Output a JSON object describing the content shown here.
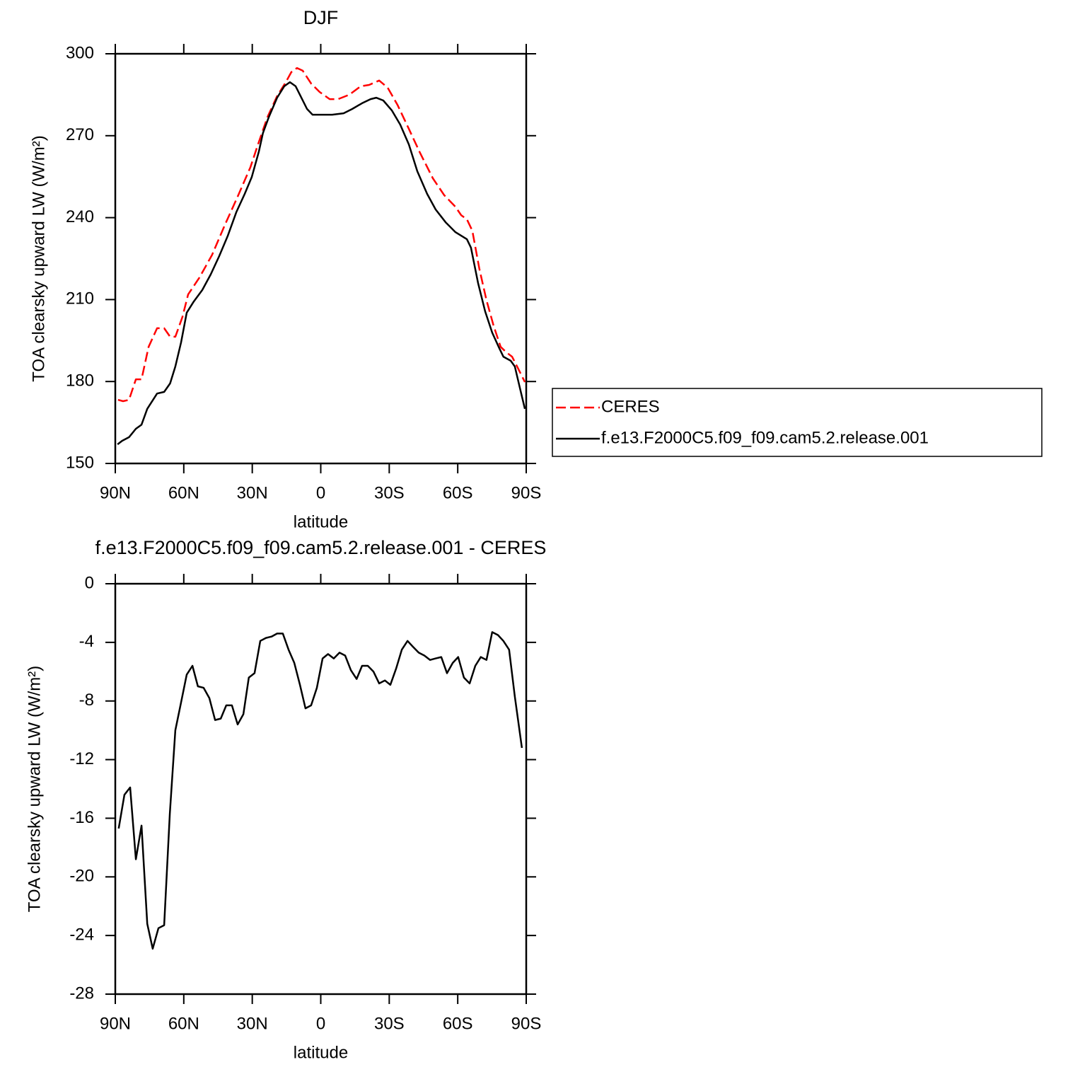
{
  "chart_data": [
    {
      "type": "line",
      "title": "DJF",
      "xlabel": "latitude",
      "ylabel": "TOA clearsky upward LW (W/m²)",
      "xlim": [
        90,
        -90
      ],
      "xticks": [
        {
          "value": 90,
          "label": "90N"
        },
        {
          "value": 60,
          "label": "60N"
        },
        {
          "value": 30,
          "label": "30N"
        },
        0,
        {
          "value": -30,
          "label": "30S"
        },
        {
          "value": -60,
          "label": "60S"
        },
        {
          "value": -90,
          "label": "90S"
        }
      ],
      "ylim": [
        150,
        300
      ],
      "yticks": [
        150,
        180,
        210,
        240,
        270,
        300
      ],
      "legend": "right",
      "series": [
        {
          "name": "CERES",
          "color": "#ff0000",
          "line_style": "dashed",
          "x": [
            88.8,
            86.6,
            84,
            81,
            78.5,
            75.4,
            71.7,
            68.6,
            66,
            63.7,
            60.6,
            58.1,
            53.1,
            47.6,
            42,
            36.4,
            30.8,
            27.7,
            23.4,
            19.1,
            15.3,
            12.9,
            10.4,
            7.9,
            4.2,
            0.5,
            -3.9,
            -7.6,
            -12.5,
            -17.5,
            -21.2,
            -25.6,
            -29.3,
            -33.6,
            -38.6,
            -43.5,
            -49.1,
            -54.1,
            -59,
            -61.5,
            -64,
            -66.4,
            -69.5,
            -72.6,
            -75.7,
            -78.8,
            -81.3,
            -83.8,
            -86.3,
            -89.4
          ],
          "values": [
            173.3,
            172.8,
            173.3,
            180.8,
            180.8,
            192.7,
            199.5,
            199.5,
            196.4,
            196.4,
            203.6,
            211.9,
            218.1,
            226.4,
            237.3,
            247.7,
            258.5,
            266.3,
            276.7,
            284.5,
            289.6,
            293.3,
            294.8,
            293.8,
            289.1,
            286,
            283.4,
            283.4,
            285,
            288.1,
            288.6,
            290.2,
            287.6,
            281.3,
            272.5,
            263.7,
            254.4,
            248.2,
            244,
            240.9,
            239.4,
            235.2,
            221.2,
            209.8,
            200.5,
            192.7,
            190.7,
            189.1,
            185,
            179.8
          ]
        },
        {
          "name": "f.e13.F2000C5.f09_f09.cam5.2.release.001",
          "color": "#000000",
          "line_style": "solid",
          "x": [
            89,
            87,
            84,
            81,
            78.5,
            76,
            71.7,
            68.6,
            66,
            63.7,
            61.2,
            58.7,
            55.6,
            51.9,
            48.2,
            44.5,
            40.7,
            37,
            33.3,
            30.2,
            27.1,
            25.3,
            22.8,
            19.1,
            16,
            13.5,
            11,
            8.5,
            6,
            3.6,
            0,
            -5,
            -10,
            -13.8,
            -18.1,
            -21.8,
            -24.3,
            -27.4,
            -31.1,
            -34.8,
            -38.6,
            -42.3,
            -46.6,
            -50.3,
            -54.7,
            -59,
            -64,
            -65.8,
            -68.9,
            -72,
            -75.1,
            -78.2,
            -80,
            -83.2,
            -85,
            -87.5,
            -89.4
          ],
          "values": [
            157,
            158.3,
            159.6,
            162.7,
            164.2,
            170,
            175.6,
            176.2,
            179.3,
            185.5,
            194.3,
            205.2,
            209.3,
            213.5,
            219.2,
            225.9,
            233.4,
            242,
            248.7,
            254.9,
            264.2,
            271,
            276.7,
            283.9,
            288.1,
            289.6,
            288.1,
            283.9,
            279.8,
            277.7,
            277.7,
            277.7,
            278.2,
            279.8,
            281.9,
            283.4,
            283.9,
            282.9,
            279.3,
            274.1,
            266.8,
            257,
            248.7,
            243,
            238.3,
            234.7,
            232.1,
            229,
            216.1,
            205.7,
            197.9,
            192.2,
            189.1,
            187.6,
            185.5,
            176.7,
            170
          ]
        }
      ]
    },
    {
      "type": "line",
      "title": "f.e13.F2000C5.f09_f09.cam5.2.release.001  -  CERES",
      "xlabel": "latitude",
      "ylabel": "TOA clearsky upward LW (W/m²)",
      "xlim": [
        90,
        -90
      ],
      "xticks": [
        {
          "value": 90,
          "label": "90N"
        },
        {
          "value": 60,
          "label": "60N"
        },
        {
          "value": 30,
          "label": "30N"
        },
        0,
        {
          "value": -30,
          "label": "30S"
        },
        {
          "value": -60,
          "label": "60S"
        },
        {
          "value": -90,
          "label": "90S"
        }
      ],
      "ylim": [
        -28,
        0
      ],
      "yticks": [
        -28,
        -24,
        -20,
        -16,
        -12,
        -8,
        -4,
        0
      ],
      "color": "#000000",
      "x": [
        88.5,
        86,
        83.5,
        81,
        78.5,
        76,
        73.6,
        71.1,
        68.6,
        66.1,
        63.7,
        61.2,
        58.7,
        56.2,
        53.8,
        51.3,
        48.8,
        46.3,
        43.8,
        41.4,
        38.9,
        36.4,
        33.9,
        31.5,
        29,
        26.5,
        24,
        21.5,
        19.1,
        16.6,
        14.1,
        11.6,
        9.1,
        6.7,
        4.2,
        1.7,
        -0.8,
        -3.2,
        -5.7,
        -8.2,
        -10.7,
        -13.2,
        -15.7,
        -18.1,
        -20.6,
        -23.1,
        -25.6,
        -28.1,
        -30.5,
        -33,
        -35.5,
        -38,
        -40.4,
        -42.9,
        -45.4,
        -47.9,
        -50.3,
        -52.8,
        -55.3,
        -57.8,
        -60.2,
        -62.7,
        -65.2,
        -67.7,
        -70.1,
        -72.6,
        -75.1,
        -77.6,
        -80,
        -82.5,
        -85,
        -88.1
      ],
      "values": [
        -16.7,
        -14.4,
        -13.9,
        -18.8,
        -16.5,
        -23.2,
        -24.9,
        -23.5,
        -23.3,
        -15.7,
        -10,
        -8.1,
        -6.2,
        -5.6,
        -7,
        -7.1,
        -7.8,
        -9.3,
        -9.2,
        -8.3,
        -8.3,
        -9.6,
        -8.9,
        -6.4,
        -6.1,
        -3.9,
        -3.7,
        -3.6,
        -3.4,
        -3.4,
        -4.5,
        -5.4,
        -6.9,
        -8.5,
        -8.3,
        -7.1,
        -5.1,
        -4.8,
        -5.1,
        -4.7,
        -4.9,
        -5.9,
        -6.5,
        -5.6,
        -5.6,
        -6,
        -6.8,
        -6.6,
        -6.9,
        -5.8,
        -4.5,
        -3.9,
        -4.3,
        -4.7,
        -4.9,
        -5.2,
        -5.1,
        -5,
        -6.1,
        -5.4,
        -5,
        -6.4,
        -6.8,
        -5.6,
        -5,
        -5.2,
        -3.3,
        -3.5,
        -3.9,
        -4.5,
        -7.7,
        -11.2
      ]
    }
  ]
}
